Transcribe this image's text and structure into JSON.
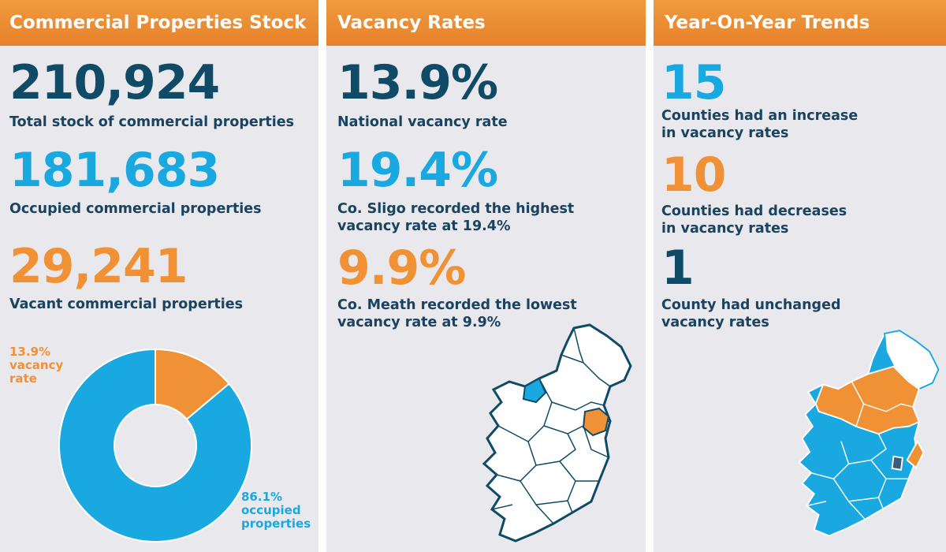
{
  "panels": {
    "stock": {
      "title": "Commercial Properties Stock",
      "total_value": "210,924",
      "total_label": "Total stock of commercial properties",
      "occupied_value": "181,683",
      "occupied_label": "Occupied commercial properties",
      "vacant_value": "29,241",
      "vacant_label": "Vacant commercial properties",
      "donut": {
        "vacant_label": [
          "13.9%",
          "vacancy",
          "rate"
        ],
        "occupied_label": [
          "86.1%",
          "occupied",
          "properties"
        ],
        "vacant_percent": 13.9,
        "occupied_percent": 86.1
      }
    },
    "vacancy": {
      "title": "Vacancy Rates",
      "national_value": "13.9%",
      "national_label": "National vacancy rate",
      "highest_value": "19.4%",
      "highest_label": [
        "Co. Sligo recorded the highest",
        "vacancy rate at 19.4%"
      ],
      "lowest_value": "9.9%",
      "lowest_label": [
        "Co. Meath recorded the lowest",
        "vacancy rate at 9.9%"
      ]
    },
    "trends": {
      "title": "Year-On-Year Trends",
      "increase_value": "15",
      "increase_label": [
        "Counties had an increase",
        "in vacancy rates"
      ],
      "decrease_value": "10",
      "decrease_label": [
        "Counties had decreases",
        "in vacancy rates"
      ],
      "unchanged_value": "1",
      "unchanged_label": [
        "County had unchanged",
        "vacancy rates"
      ]
    }
  },
  "colors": {
    "orange": "#f09136",
    "blue": "#1aa8e0",
    "navy": "#0f4a66",
    "panel_bg": "#e8e8ed"
  }
}
